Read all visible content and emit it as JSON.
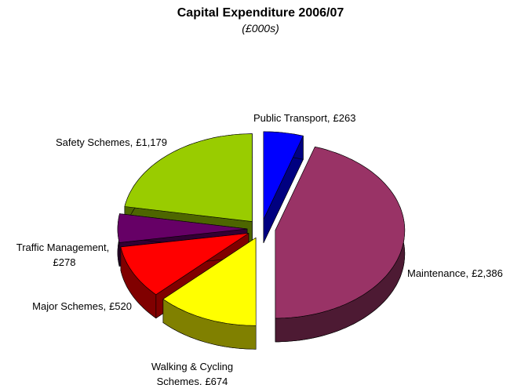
{
  "chart_data": {
    "type": "pie",
    "title": "Capital Expenditure 2006/07",
    "subtitle": "(£000s)",
    "categories": [
      "Public Transport,",
      "Maintenance,",
      "Walking & Cycling Schemes,",
      "Major Schemes,",
      "Traffic Management,",
      "Safety Schemes,"
    ],
    "values": [
      263,
      2386,
      674,
      520,
      278,
      1179
    ],
    "value_labels": [
      "£263",
      "£2,386",
      "£674",
      "£520",
      "£278",
      "£1,179"
    ],
    "colors": [
      "#0000ff",
      "#993366",
      "#ffff00",
      "#ff0000",
      "#660066",
      "#99cc00"
    ],
    "exploded": true,
    "three_d": true
  }
}
